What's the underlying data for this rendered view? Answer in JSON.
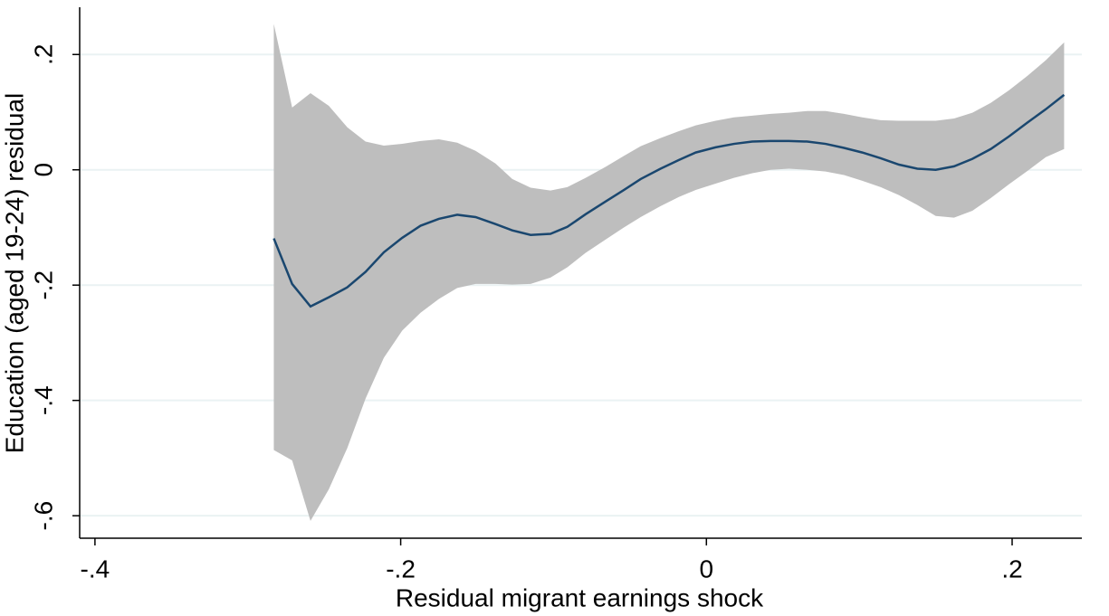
{
  "chart_data": {
    "type": "line_band",
    "x_label": "Residual migrant earnings shock",
    "y_label": "Education (aged 19-24) residual",
    "x": [
      -0.283,
      -0.271,
      -0.259,
      -0.247,
      -0.235,
      -0.223,
      -0.211,
      -0.199,
      -0.187,
      -0.175,
      -0.163,
      -0.151,
      -0.138,
      -0.127,
      -0.115,
      -0.102,
      -0.091,
      -0.079,
      -0.066,
      -0.054,
      -0.043,
      -0.03,
      -0.018,
      -0.007,
      0.006,
      0.018,
      0.03,
      0.042,
      0.054,
      0.066,
      0.078,
      0.09,
      0.102,
      0.114,
      0.126,
      0.138,
      0.15,
      0.162,
      0.174,
      0.186,
      0.198,
      0.21,
      0.222,
      0.234
    ],
    "values": [
      -0.119,
      -0.198,
      -0.237,
      -0.221,
      -0.204,
      -0.177,
      -0.143,
      -0.118,
      -0.097,
      -0.085,
      -0.078,
      -0.082,
      -0.094,
      -0.105,
      -0.113,
      -0.111,
      -0.099,
      -0.077,
      -0.055,
      -0.035,
      -0.016,
      0.002,
      0.017,
      0.03,
      0.039,
      0.045,
      0.049,
      0.05,
      0.05,
      0.049,
      0.045,
      0.038,
      0.03,
      0.02,
      0.009,
      0.002,
      0.0,
      0.006,
      0.019,
      0.036,
      0.058,
      0.082,
      0.105,
      0.13
    ],
    "upper": [
      0.253,
      0.108,
      0.133,
      0.111,
      0.074,
      0.049,
      0.042,
      0.045,
      0.05,
      0.053,
      0.047,
      0.033,
      0.011,
      -0.016,
      -0.031,
      -0.036,
      -0.03,
      -0.014,
      0.005,
      0.024,
      0.041,
      0.055,
      0.067,
      0.077,
      0.085,
      0.091,
      0.094,
      0.097,
      0.099,
      0.102,
      0.102,
      0.097,
      0.091,
      0.086,
      0.085,
      0.085,
      0.085,
      0.089,
      0.099,
      0.116,
      0.138,
      0.163,
      0.19,
      0.221
    ],
    "lower": [
      -0.486,
      -0.504,
      -0.609,
      -0.554,
      -0.483,
      -0.397,
      -0.326,
      -0.279,
      -0.248,
      -0.224,
      -0.205,
      -0.198,
      -0.198,
      -0.199,
      -0.198,
      -0.187,
      -0.169,
      -0.144,
      -0.121,
      -0.1,
      -0.082,
      -0.063,
      -0.047,
      -0.035,
      -0.024,
      -0.014,
      -0.006,
      0.0,
      0.002,
      0.0,
      -0.003,
      -0.009,
      -0.019,
      -0.03,
      -0.044,
      -0.061,
      -0.08,
      -0.083,
      -0.071,
      -0.049,
      -0.025,
      -0.002,
      0.022,
      0.036
    ],
    "color": "#1a476f",
    "band_color": "#bebebe",
    "xlim": [
      -0.41,
      0.2456
    ],
    "ylim": [
      -0.639,
      0.282
    ],
    "xticks": [
      {
        "value": -0.4,
        "label": "-.4"
      },
      {
        "value": -0.2,
        "label": "-.2"
      },
      0,
      {
        "value": 0.2,
        "label": ".2"
      }
    ],
    "yticks": [
      {
        "value": -0.6,
        "label": "-.6"
      },
      {
        "value": -0.4,
        "label": "-.4"
      },
      {
        "value": -0.2,
        "label": "-.2"
      },
      0,
      {
        "value": 0.2,
        "label": ".2"
      }
    ],
    "grid": true
  }
}
